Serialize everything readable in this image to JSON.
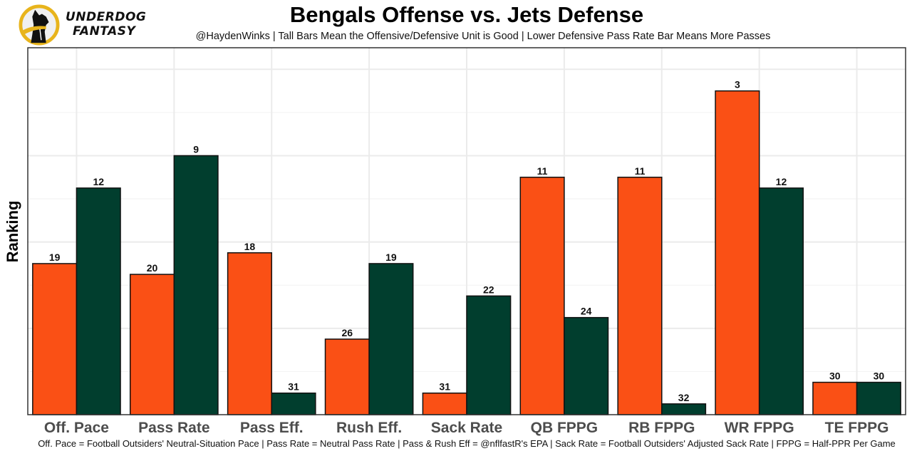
{
  "header": {
    "logo_line1": "UNDERDOG",
    "logo_line2": "FANTASY",
    "title": "Bengals Offense vs. Jets Defense",
    "subtitle": "@HaydenWinks | Tall Bars Mean the Offensive/Defensive Unit is Good | Lower Defensive Pass Rate Bar Means More Passes"
  },
  "footer": {
    "caption": "Off. Pace = Football Outsiders' Neutral-Situation Pace | Pass Rate = Neutral Pass Rate | Pass & Rush Eff = @nflfastR's EPA | Sack Rate = Football Outsiders' Adjusted Sack Rate | FPPG = Half-PPR Per Game"
  },
  "colors": {
    "offense": "#fa5015",
    "defense": "#013e2e",
    "logo_ring": "#e8b41c"
  },
  "chart_data": {
    "type": "bar",
    "title": "Bengals Offense vs. Jets Defense",
    "xlabel": "",
    "ylabel": "Ranking",
    "categories": [
      "Off. Pace",
      "Pass Rate",
      "Pass Eff.",
      "Rush Eff.",
      "Sack Rate",
      "QB FPPG",
      "RB FPPG",
      "WR FPPG",
      "TE FPPG"
    ],
    "series": [
      {
        "name": "Bengals Offense",
        "values": [
          19,
          20,
          18,
          26,
          31,
          11,
          11,
          3,
          30
        ]
      },
      {
        "name": "Jets Defense",
        "values": [
          12,
          9,
          31,
          19,
          22,
          24,
          32,
          12,
          30
        ]
      }
    ],
    "bar_height_rule": "height = 33 - rank (rank 1 tallest)",
    "ylim": [
      0,
      34
    ],
    "y_ticks_shown": false,
    "grid": true,
    "legend": "none"
  }
}
